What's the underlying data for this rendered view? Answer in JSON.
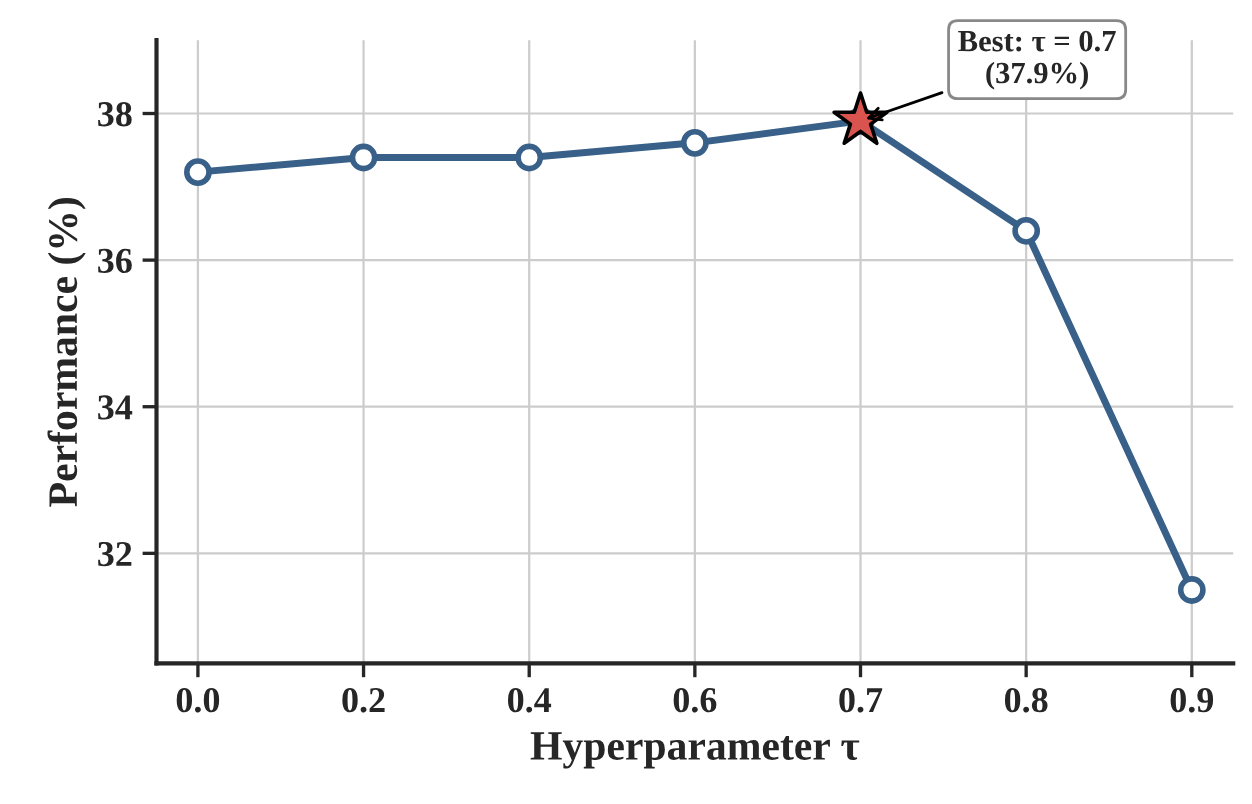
{
  "chart_data": {
    "type": "line",
    "xlabel": "Hyperparameter τ",
    "ylabel": "Performance (%)",
    "categories": [
      "0.0",
      "0.2",
      "0.4",
      "0.6",
      "0.7",
      "0.8",
      "0.9"
    ],
    "series": [
      {
        "color": "#386088",
        "values": [
          37.2,
          37.4,
          37.4,
          37.6,
          37.9,
          36.4,
          31.5
        ],
        "marker": "circle"
      },
      {
        "type": "scatter",
        "color": "#d9534f",
        "x": [
          "0.7"
        ],
        "values": [
          37.9
        ],
        "marker": "star"
      }
    ],
    "ylim": [
      30.5,
      39.0
    ],
    "yticks": [
      32,
      34,
      36,
      38
    ],
    "grid": true,
    "annotations": [
      {
        "text": "Best: τ = 0.7\n(37.9%)",
        "x": "0.7",
        "y": 37.9
      }
    ]
  }
}
